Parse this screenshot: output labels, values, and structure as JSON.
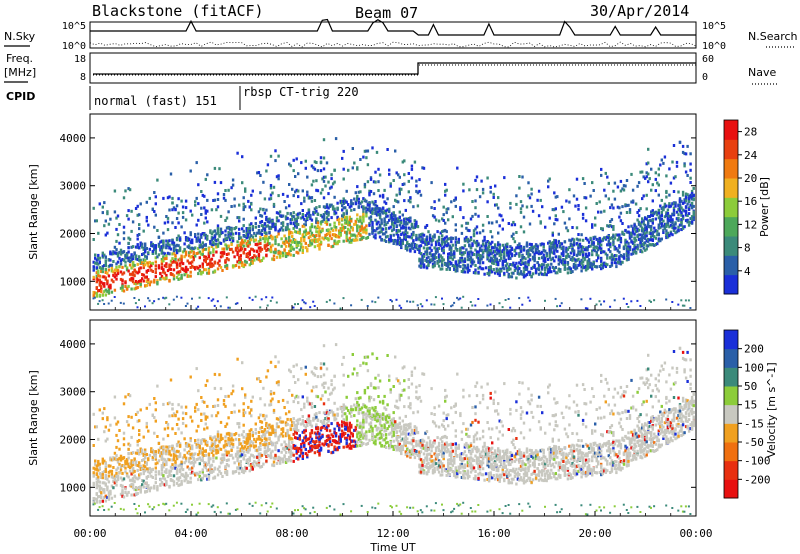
{
  "header": {
    "station": "Blackstone (fitACF)",
    "beam": "Beam 07",
    "date": "30/Apr/2014"
  },
  "labels": {
    "nsky": "N.Sky",
    "nsearch": "N.Search",
    "freq_line1": "Freq.",
    "freq_line2": "[MHz]",
    "nave": "Nave",
    "cpid": "CPID"
  },
  "noise_panel": {
    "left_ticks": [
      "10^5",
      "10^0"
    ],
    "right_ticks": [
      "10^5",
      "10^0"
    ]
  },
  "freq_panel": {
    "left_ticks": [
      "18",
      "8"
    ],
    "right_ticks": [
      "60",
      "0"
    ]
  },
  "cpid_modes": [
    {
      "label": "normal (fast) 151",
      "start_hour": 0
    },
    {
      "label": "rbsp CT-trig 220",
      "start_hour": 6
    }
  ],
  "colors": {
    "power_scale": [
      "#1a2fd8",
      "#2a5fa8",
      "#3b8a7a",
      "#4da85a",
      "#8ccc3a",
      "#f0b020",
      "#f07a10",
      "#e84010",
      "#e81010"
    ],
    "velocity_scale": [
      "#1a2fd8",
      "#2a5fa8",
      "#3b8a7a",
      "#8ccc3a",
      "#c8c8c0",
      "#f0a020",
      "#f07010",
      "#e83010",
      "#e81010"
    ]
  },
  "chart_data": [
    {
      "type": "heatmap",
      "name": "power",
      "ylabel": "Slant Range [km]",
      "ylim": [
        400,
        4500
      ],
      "yticks": [
        "1000",
        "2000",
        "3000",
        "4000"
      ],
      "xlim": [
        0,
        24
      ],
      "colorbar_label": "Power [dB]",
      "colorbar_ticks": [
        "4",
        "8",
        "12",
        "16",
        "20",
        "24",
        "28"
      ],
      "colorbar_range": [
        0,
        30
      ]
    },
    {
      "type": "heatmap",
      "name": "velocity",
      "ylabel": "Slant Range [km]",
      "ylim": [
        400,
        4500
      ],
      "yticks": [
        "1000",
        "2000",
        "3000",
        "4000"
      ],
      "xlim": [
        0,
        24
      ],
      "colorbar_label": "Velocity [m s^-1]",
      "colorbar_ticks": [
        "200",
        "100",
        "50",
        "15",
        "-15",
        "-50",
        "-100",
        "-200"
      ]
    }
  ],
  "xaxis": {
    "label": "Time UT",
    "ticks": [
      "00:00",
      "04:00",
      "08:00",
      "12:00",
      "16:00",
      "20:00",
      "00:00"
    ]
  }
}
